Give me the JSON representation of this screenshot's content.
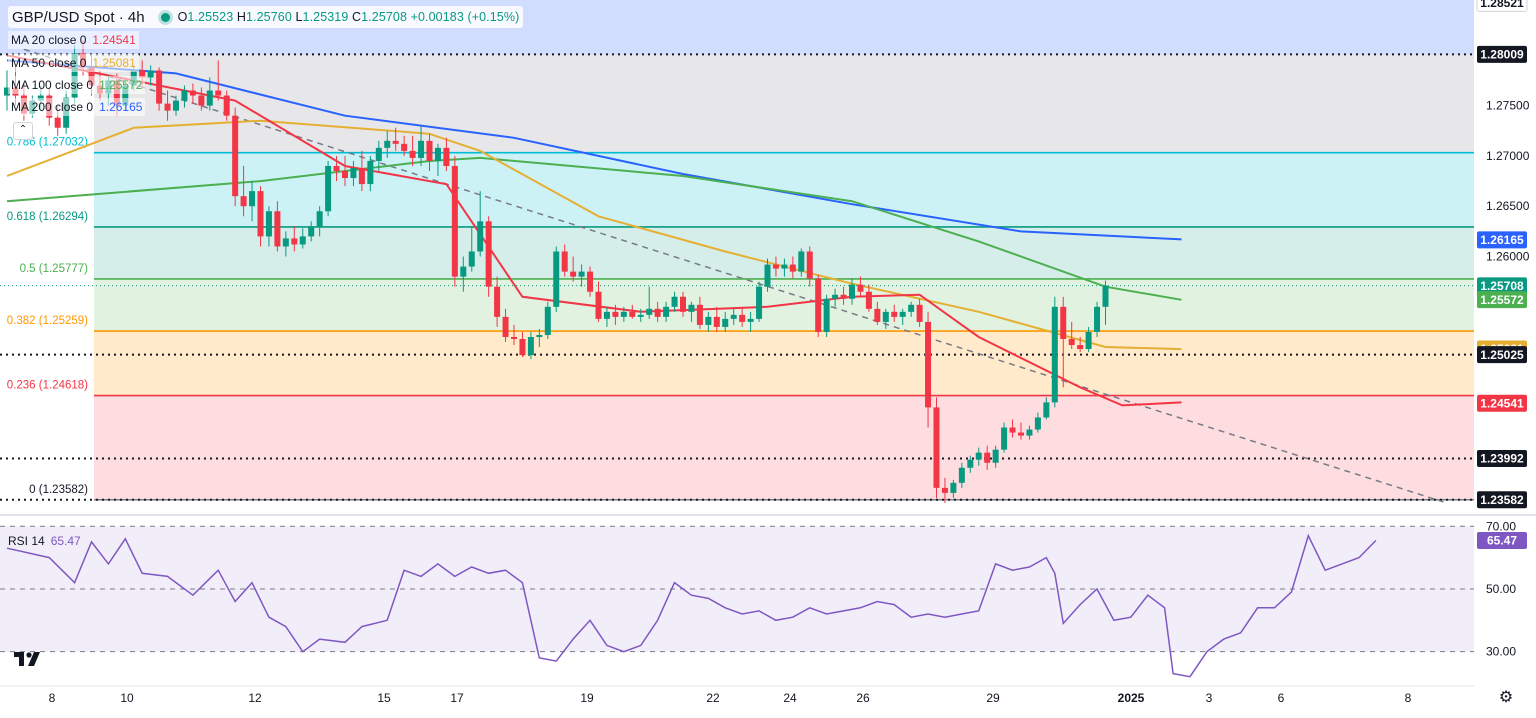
{
  "header": {
    "symbol": "GBP/USD Spot · 4h",
    "ohlc_o": "1.25523",
    "ohlc_h": "1.25760",
    "ohlc_l": "1.25319",
    "ohlc_c": "1.25708",
    "change": "+0.00183 (+0.15%)"
  },
  "ma_legend": [
    {
      "label": "MA 20 close 0",
      "value": "1.24541",
      "color": "#f23645"
    },
    {
      "label": "MA 50 close 0",
      "value": "1.25081",
      "color": "#e5b032"
    },
    {
      "label": "MA 100 close 0",
      "value": "1.25572",
      "color": "#4caf50"
    },
    {
      "label": "MA 200 close 0",
      "value": "1.26165",
      "color": "#2962ff"
    }
  ],
  "rsi_legend": {
    "label": "RSI 14",
    "value": "65.47"
  },
  "colors": {
    "up": "#089981",
    "down": "#f23645",
    "ma20": "#f23645",
    "ma50": "#e5b032",
    "ma100": "#4caf50",
    "ma200": "#2962ff",
    "rsi": "#7e57c2"
  },
  "chart_data": {
    "type": "candlestick",
    "symbol": "GBP/USD",
    "timeframe": "4h",
    "ylim": [
      1.235,
      1.2855
    ],
    "price_ticks": [
      "1.27500",
      "1.27000",
      "1.26500",
      "1.26000"
    ],
    "x_ticks": [
      "8",
      "10",
      "12",
      "15",
      "17",
      "19",
      "22",
      "24",
      "26",
      "29",
      "2025",
      "3",
      "6",
      "8"
    ],
    "price_tags": [
      {
        "value": 1.28521,
        "label": "1.28521",
        "kind": "plain"
      },
      {
        "value": 1.28009,
        "label": "1.28009",
        "kind": "dark"
      },
      {
        "value": 1.26165,
        "label": "1.26165",
        "kind": "ma200"
      },
      {
        "value": 1.25708,
        "label": "1.25708",
        "kind": "close"
      },
      {
        "value": 1.25572,
        "label": "1.25572",
        "kind": "ma100"
      },
      {
        "value": 1.25081,
        "label": "1.25081",
        "kind": "ma50"
      },
      {
        "value": 1.25025,
        "label": "1.25025",
        "kind": "dark"
      },
      {
        "value": 1.24541,
        "label": "1.24541",
        "kind": "ma20"
      },
      {
        "value": 1.23992,
        "label": "1.23992",
        "kind": "dark"
      },
      {
        "value": 1.23582,
        "label": "1.23582",
        "kind": "dark"
      }
    ],
    "fibonacci": [
      {
        "level": "0.786",
        "value": 1.27032,
        "label": "0.786 (1.27032)",
        "color": "#00bcd4"
      },
      {
        "level": "0.618",
        "value": 1.26294,
        "label": "0.618 (1.26294)",
        "color": "#089981"
      },
      {
        "level": "0.5",
        "value": 1.25777,
        "label": "0.5 (1.25777)",
        "color": "#4caf50"
      },
      {
        "level": "0.382",
        "value": 1.25259,
        "label": "0.382 (1.25259)",
        "color": "#ff9800"
      },
      {
        "level": "0.236",
        "value": 1.24618,
        "label": "0.236 (1.24618)",
        "color": "#f23645"
      },
      {
        "level": "0",
        "value": 1.23582,
        "label": "0 (1.23582)",
        "color": "#787b86"
      }
    ],
    "fib_top": 1.28009,
    "horizontal_levels": [
      1.28009,
      1.25025,
      1.23992,
      1.23582
    ],
    "trendline": {
      "from": [
        2,
        1.2806
      ],
      "to": [
        170,
        1.2356
      ]
    },
    "candles": [
      [
        1.276,
        1.2785,
        1.2745,
        1.2768
      ],
      [
        1.2768,
        1.279,
        1.275,
        1.276
      ],
      [
        1.276,
        1.2772,
        1.2735,
        1.2742
      ],
      [
        1.2742,
        1.276,
        1.2738,
        1.2755
      ],
      [
        1.2755,
        1.277,
        1.2745,
        1.276
      ],
      [
        1.276,
        1.2768,
        1.273,
        1.2738
      ],
      [
        1.2738,
        1.275,
        1.272,
        1.2728
      ],
      [
        1.2728,
        1.2765,
        1.2722,
        1.2758
      ],
      [
        1.2758,
        1.281,
        1.2752,
        1.2802
      ],
      [
        1.2802,
        1.2815,
        1.278,
        1.2788
      ],
      [
        1.2788,
        1.28,
        1.276,
        1.277
      ],
      [
        1.277,
        1.2785,
        1.2755,
        1.2762
      ],
      [
        1.2762,
        1.278,
        1.275,
        1.2775
      ],
      [
        1.2775,
        1.2782,
        1.274,
        1.275
      ],
      [
        1.275,
        1.2775,
        1.2745,
        1.277
      ],
      [
        1.277,
        1.279,
        1.2765,
        1.2785
      ],
      [
        1.2785,
        1.2795,
        1.277,
        1.2778
      ],
      [
        1.2778,
        1.279,
        1.277,
        1.2785
      ],
      [
        1.2785,
        1.2788,
        1.2745,
        1.2752
      ],
      [
        1.2752,
        1.2765,
        1.2735,
        1.2745
      ],
      [
        1.2745,
        1.276,
        1.274,
        1.2755
      ],
      [
        1.2755,
        1.277,
        1.2748,
        1.2765
      ],
      [
        1.2765,
        1.2772,
        1.2752,
        1.276
      ],
      [
        1.276,
        1.2768,
        1.2745,
        1.275
      ],
      [
        1.275,
        1.2778,
        1.2745,
        1.2765
      ],
      [
        1.2765,
        1.2795,
        1.2755,
        1.276
      ],
      [
        1.276,
        1.2765,
        1.2735,
        1.274
      ],
      [
        1.274,
        1.2748,
        1.265,
        1.266
      ],
      [
        1.266,
        1.269,
        1.264,
        1.265
      ],
      [
        1.265,
        1.2675,
        1.2635,
        1.2665
      ],
      [
        1.2665,
        1.267,
        1.261,
        1.262
      ],
      [
        1.262,
        1.265,
        1.261,
        1.2645
      ],
      [
        1.2645,
        1.2655,
        1.2605,
        1.261
      ],
      [
        1.261,
        1.2625,
        1.26,
        1.2618
      ],
      [
        1.2618,
        1.263,
        1.2605,
        1.2612
      ],
      [
        1.2612,
        1.2628,
        1.2608,
        1.262
      ],
      [
        1.262,
        1.2635,
        1.2615,
        1.263
      ],
      [
        1.263,
        1.265,
        1.262,
        1.2645
      ],
      [
        1.2645,
        1.2695,
        1.264,
        1.269
      ],
      [
        1.269,
        1.27,
        1.2675,
        1.2685
      ],
      [
        1.2685,
        1.27,
        1.267,
        1.2678
      ],
      [
        1.2678,
        1.2695,
        1.267,
        1.2688
      ],
      [
        1.2688,
        1.2705,
        1.2665,
        1.2672
      ],
      [
        1.2672,
        1.27,
        1.2665,
        1.2695
      ],
      [
        1.2695,
        1.2715,
        1.2685,
        1.2708
      ],
      [
        1.2708,
        1.2725,
        1.2698,
        1.2715
      ],
      [
        1.2715,
        1.2728,
        1.2705,
        1.2712
      ],
      [
        1.2712,
        1.272,
        1.27,
        1.2705
      ],
      [
        1.2705,
        1.272,
        1.269,
        1.2698
      ],
      [
        1.2698,
        1.273,
        1.269,
        1.2715
      ],
      [
        1.2715,
        1.2722,
        1.2685,
        1.2695
      ],
      [
        1.2695,
        1.2712,
        1.268,
        1.2708
      ],
      [
        1.2708,
        1.2718,
        1.2685,
        1.269
      ],
      [
        1.269,
        1.27,
        1.257,
        1.258
      ],
      [
        1.258,
        1.26,
        1.2565,
        1.259
      ],
      [
        1.259,
        1.263,
        1.2585,
        1.2605
      ],
      [
        1.2605,
        1.2665,
        1.26,
        1.2635
      ],
      [
        1.2635,
        1.264,
        1.256,
        1.257
      ],
      [
        1.257,
        1.258,
        1.253,
        1.254
      ],
      [
        1.254,
        1.2548,
        1.2515,
        1.252
      ],
      [
        1.252,
        1.2532,
        1.2512,
        1.2518
      ],
      [
        1.2518,
        1.2525,
        1.25,
        1.2502
      ],
      [
        1.2502,
        1.2525,
        1.2498,
        1.252
      ],
      [
        1.252,
        1.2528,
        1.251,
        1.2522
      ],
      [
        1.2522,
        1.2555,
        1.2518,
        1.255
      ],
      [
        1.255,
        1.261,
        1.2545,
        1.2605
      ],
      [
        1.2605,
        1.2612,
        1.258,
        1.2585
      ],
      [
        1.2585,
        1.26,
        1.2575,
        1.258
      ],
      [
        1.258,
        1.2592,
        1.257,
        1.2585
      ],
      [
        1.2585,
        1.259,
        1.256,
        1.2565
      ],
      [
        1.2565,
        1.2575,
        1.2535,
        1.2538
      ],
      [
        1.2538,
        1.255,
        1.253,
        1.2545
      ],
      [
        1.2545,
        1.2552,
        1.2532,
        1.254
      ],
      [
        1.254,
        1.255,
        1.2535,
        1.2545
      ],
      [
        1.2545,
        1.2552,
        1.2538,
        1.254
      ],
      [
        1.254,
        1.2548,
        1.2535,
        1.2542
      ],
      [
        1.2542,
        1.257,
        1.2538,
        1.2548
      ],
      [
        1.2548,
        1.2555,
        1.2535,
        1.254
      ],
      [
        1.254,
        1.2555,
        1.2535,
        1.255
      ],
      [
        1.255,
        1.2565,
        1.2545,
        1.256
      ],
      [
        1.256,
        1.2565,
        1.254,
        1.2545
      ],
      [
        1.2545,
        1.2555,
        1.2535,
        1.2552
      ],
      [
        1.2552,
        1.256,
        1.2528,
        1.2532
      ],
      [
        1.2532,
        1.2545,
        1.2525,
        1.254
      ],
      [
        1.254,
        1.255,
        1.2525,
        1.253
      ],
      [
        1.253,
        1.2545,
        1.2525,
        1.2538
      ],
      [
        1.2538,
        1.2548,
        1.2532,
        1.2542
      ],
      [
        1.2542,
        1.255,
        1.253,
        1.2535
      ],
      [
        1.2535,
        1.2545,
        1.2525,
        1.2538
      ],
      [
        1.2538,
        1.2575,
        1.2535,
        1.257
      ],
      [
        1.257,
        1.2598,
        1.2565,
        1.2592
      ],
      [
        1.2592,
        1.26,
        1.258,
        1.2588
      ],
      [
        1.2588,
        1.2598,
        1.258,
        1.2592
      ],
      [
        1.2592,
        1.26,
        1.2578,
        1.2585
      ],
      [
        1.2585,
        1.2608,
        1.258,
        1.2605
      ],
      [
        1.2605,
        1.261,
        1.257,
        1.2578
      ],
      [
        1.2578,
        1.2582,
        1.252,
        1.2525
      ],
      [
        1.2525,
        1.2562,
        1.252,
        1.2558
      ],
      [
        1.2558,
        1.2568,
        1.255,
        1.2562
      ],
      [
        1.2562,
        1.257,
        1.2552,
        1.2558
      ],
      [
        1.2558,
        1.2578,
        1.2552,
        1.2572
      ],
      [
        1.2572,
        1.258,
        1.256,
        1.2565
      ],
      [
        1.2565,
        1.2572,
        1.2545,
        1.2548
      ],
      [
        1.2548,
        1.2555,
        1.2532,
        1.2535
      ],
      [
        1.2535,
        1.2548,
        1.2528,
        1.2545
      ],
      [
        1.2545,
        1.2552,
        1.2535,
        1.254
      ],
      [
        1.254,
        1.2548,
        1.2532,
        1.2545
      ],
      [
        1.2545,
        1.2555,
        1.254,
        1.2552
      ],
      [
        1.2552,
        1.2558,
        1.253,
        1.2535
      ],
      [
        1.2535,
        1.2545,
        1.243,
        1.245
      ],
      [
        1.245,
        1.246,
        1.236,
        1.237
      ],
      [
        1.237,
        1.238,
        1.2355,
        1.2365
      ],
      [
        1.2365,
        1.2378,
        1.236,
        1.2375
      ],
      [
        1.2375,
        1.2395,
        1.237,
        1.239
      ],
      [
        1.239,
        1.2402,
        1.2385,
        1.2398
      ],
      [
        1.2398,
        1.241,
        1.2392,
        1.2405
      ],
      [
        1.2405,
        1.2412,
        1.2388,
        1.2395
      ],
      [
        1.2395,
        1.2412,
        1.239,
        1.2408
      ],
      [
        1.2408,
        1.2435,
        1.2405,
        1.243
      ],
      [
        1.243,
        1.2438,
        1.242,
        1.2425
      ],
      [
        1.2425,
        1.2435,
        1.2418,
        1.2422
      ],
      [
        1.2422,
        1.2432,
        1.2418,
        1.2428
      ],
      [
        1.2428,
        1.2445,
        1.2425,
        1.244
      ],
      [
        1.244,
        1.246,
        1.2438,
        1.2455
      ],
      [
        1.2455,
        1.256,
        1.245,
        1.255
      ],
      [
        1.255,
        1.256,
        1.247,
        1.2518
      ],
      [
        1.2518,
        1.2535,
        1.2508,
        1.2512
      ],
      [
        1.2512,
        1.252,
        1.2505,
        1.2508
      ],
      [
        1.2508,
        1.253,
        1.2505,
        1.2525
      ],
      [
        1.2525,
        1.2555,
        1.252,
        1.255
      ],
      [
        1.255,
        1.2576,
        1.2532,
        1.2571
      ]
    ],
    "ma20_path": [
      [
        0,
        1.28
      ],
      [
        27,
        1.2755
      ],
      [
        40,
        1.269
      ],
      [
        52,
        1.2672
      ],
      [
        61,
        1.256
      ],
      [
        75,
        1.2545
      ],
      [
        90,
        1.255
      ],
      [
        100,
        1.256
      ],
      [
        108,
        1.2562
      ],
      [
        115,
        1.252
      ],
      [
        127,
        1.247
      ],
      [
        132,
        1.2452
      ],
      [
        139,
        1.2455
      ]
    ],
    "ma50_path": [
      [
        0,
        1.268
      ],
      [
        15,
        1.2728
      ],
      [
        30,
        1.2735
      ],
      [
        50,
        1.2722
      ],
      [
        56,
        1.2705
      ],
      [
        70,
        1.264
      ],
      [
        85,
        1.2605
      ],
      [
        100,
        1.2573
      ],
      [
        115,
        1.2545
      ],
      [
        130,
        1.251
      ],
      [
        139,
        1.2508
      ]
    ],
    "ma100_path": [
      [
        0,
        1.2655
      ],
      [
        30,
        1.2675
      ],
      [
        50,
        1.2695
      ],
      [
        56,
        1.2698
      ],
      [
        80,
        1.268
      ],
      [
        100,
        1.2655
      ],
      [
        115,
        1.2615
      ],
      [
        130,
        1.257
      ],
      [
        139,
        1.2557
      ]
    ],
    "ma200_path": [
      [
        0,
        1.2795
      ],
      [
        20,
        1.2782
      ],
      [
        40,
        1.274
      ],
      [
        60,
        1.2718
      ],
      [
        80,
        1.2682
      ],
      [
        100,
        1.2652
      ],
      [
        120,
        1.2625
      ],
      [
        139,
        1.2617
      ]
    ],
    "rsi": {
      "ylim": [
        20,
        72
      ],
      "levels": [
        70.0,
        50.0,
        30.0
      ],
      "level_labels": [
        "70.00",
        "50.00",
        "30.00"
      ],
      "value_label": "65.47",
      "path": [
        [
          0,
          63
        ],
        [
          5,
          60
        ],
        [
          8,
          52
        ],
        [
          10,
          65
        ],
        [
          12,
          58
        ],
        [
          14,
          66
        ],
        [
          16,
          55
        ],
        [
          19,
          54
        ],
        [
          22,
          48
        ],
        [
          25,
          56
        ],
        [
          27,
          46
        ],
        [
          29,
          52
        ],
        [
          31,
          41
        ],
        [
          33,
          38
        ],
        [
          35,
          30
        ],
        [
          37,
          34
        ],
        [
          40,
          33
        ],
        [
          42,
          38
        ],
        [
          45,
          40
        ],
        [
          47,
          56
        ],
        [
          49,
          54
        ],
        [
          51,
          58
        ],
        [
          53,
          54
        ],
        [
          55,
          57
        ],
        [
          57,
          55
        ],
        [
          59,
          56
        ],
        [
          61,
          52
        ],
        [
          63,
          28
        ],
        [
          65,
          27
        ],
        [
          67,
          34
        ],
        [
          69,
          40
        ],
        [
          71,
          32
        ],
        [
          73,
          30
        ],
        [
          75,
          32
        ],
        [
          77,
          40
        ],
        [
          79,
          52
        ],
        [
          81,
          48
        ],
        [
          83,
          47
        ],
        [
          85,
          44
        ],
        [
          87,
          42
        ],
        [
          89,
          43
        ],
        [
          91,
          40
        ],
        [
          93,
          41
        ],
        [
          95,
          44
        ],
        [
          97,
          42
        ],
        [
          99,
          43
        ],
        [
          101,
          44
        ],
        [
          103,
          46
        ],
        [
          105,
          45
        ],
        [
          107,
          41
        ],
        [
          109,
          42
        ],
        [
          111,
          41
        ],
        [
          113,
          42
        ],
        [
          115,
          43
        ],
        [
          117,
          58
        ],
        [
          119,
          56
        ],
        [
          121,
          57
        ],
        [
          123,
          60
        ],
        [
          124,
          55
        ],
        [
          125,
          39
        ],
        [
          127,
          45
        ],
        [
          129,
          50
        ],
        [
          131,
          40
        ],
        [
          133,
          41
        ],
        [
          135,
          48
        ],
        [
          137,
          44
        ],
        [
          138,
          23
        ],
        [
          140,
          22
        ],
        [
          142,
          30
        ],
        [
          144,
          34
        ],
        [
          146,
          36
        ],
        [
          148,
          44
        ],
        [
          150,
          44
        ],
        [
          152,
          49
        ],
        [
          154,
          67
        ],
        [
          156,
          56
        ],
        [
          158,
          58
        ],
        [
          160,
          60
        ],
        [
          162,
          65.47
        ]
      ]
    }
  }
}
